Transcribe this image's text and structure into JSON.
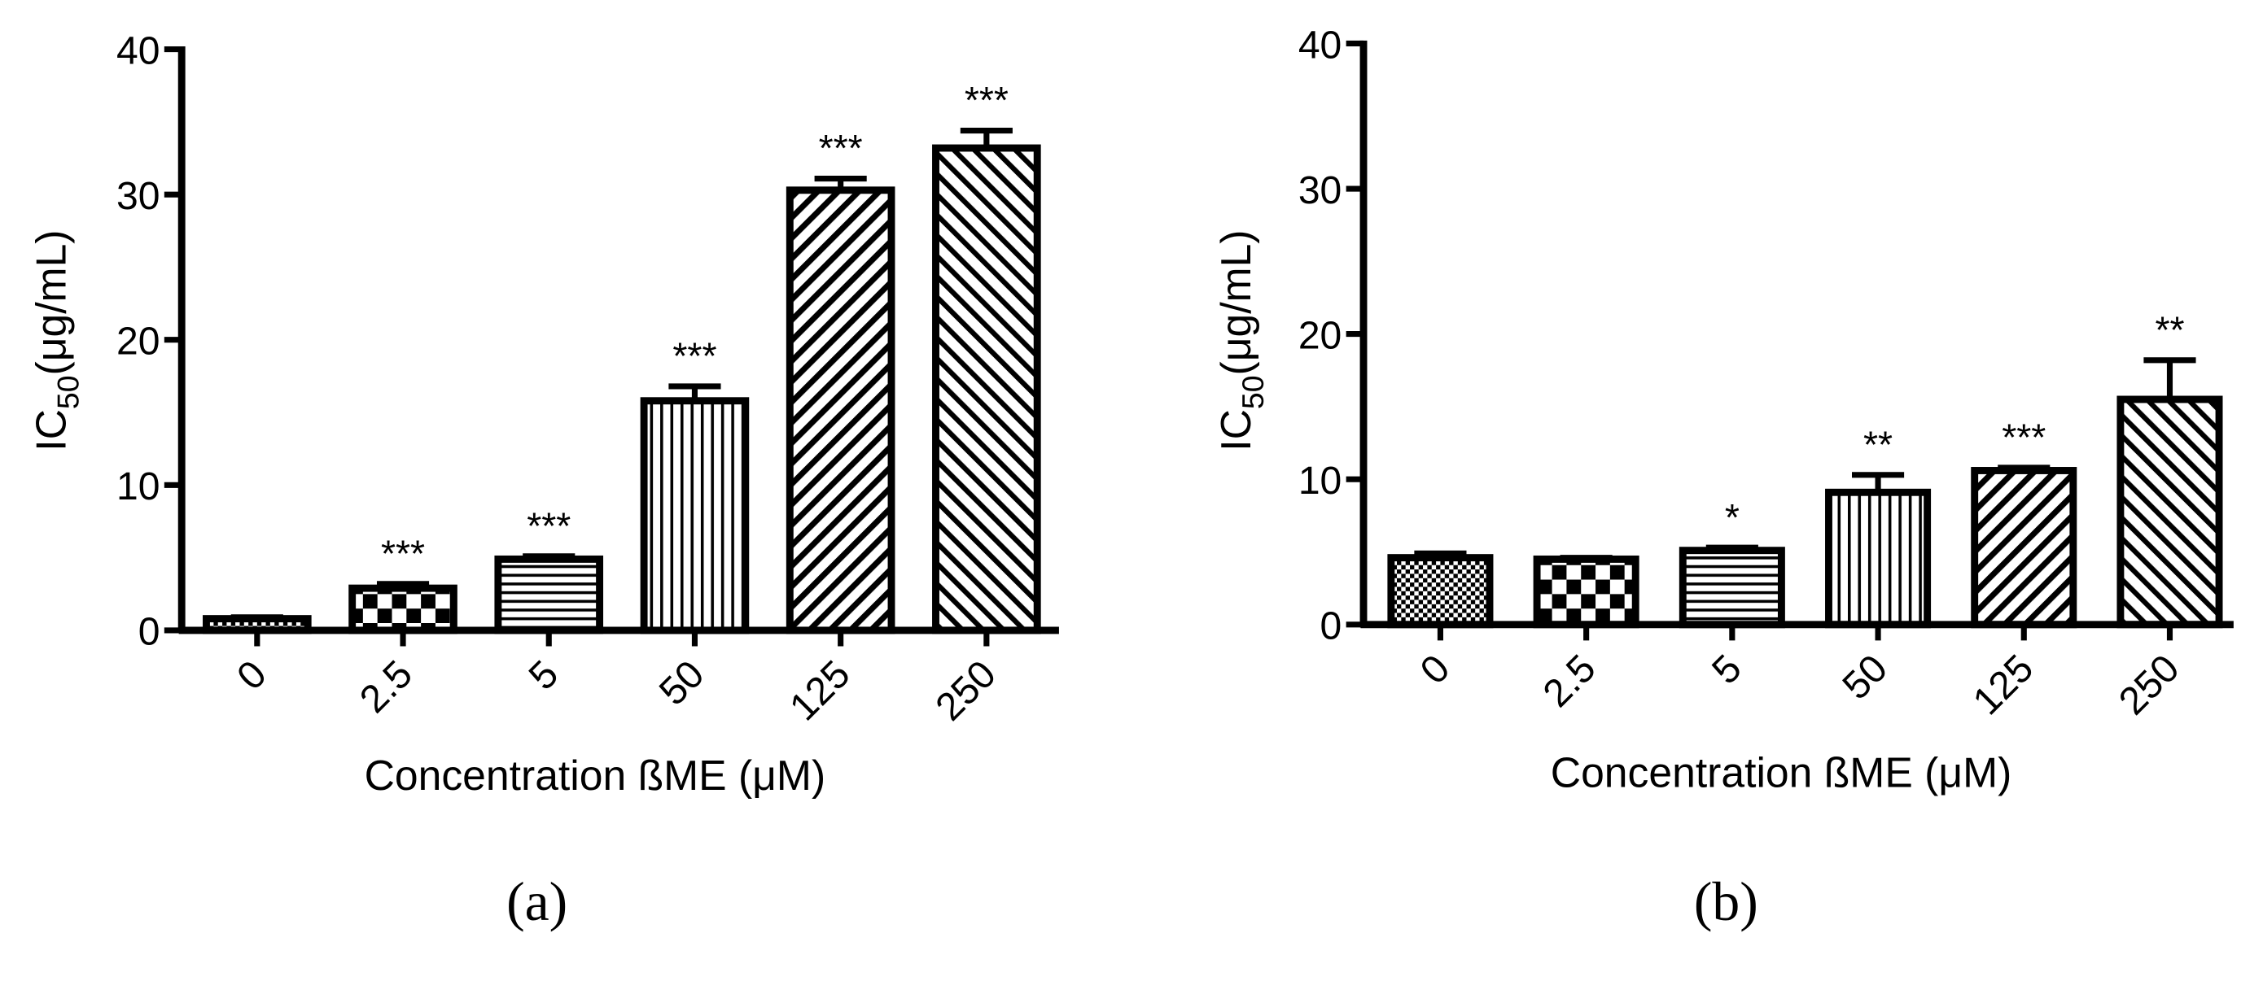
{
  "chart_data": [
    {
      "type": "bar",
      "panel_label": "(a)",
      "ylabel": {
        "main": "IC",
        "subscript": "50",
        "unit": "(μg/mL)"
      },
      "xlabel": "Concentration ßME (μM)",
      "categories": [
        "0",
        "2.5",
        "5",
        "50",
        "125",
        "250"
      ],
      "values": [
        0.8,
        2.9,
        4.9,
        15.8,
        30.3,
        33.2
      ],
      "errors": [
        0.1,
        0.3,
        0.2,
        1.0,
        0.8,
        1.2
      ],
      "annotations": [
        null,
        "***",
        "***",
        "***",
        "***",
        "***"
      ],
      "bar_patterns": [
        "dots",
        "checker",
        "hlines",
        "vlines",
        "diag-right",
        "diag-left"
      ],
      "color": "#000000",
      "ylim": [
        0,
        40
      ],
      "yticks": [
        0,
        10,
        20,
        30,
        40
      ]
    },
    {
      "type": "bar",
      "panel_label": "(b)",
      "ylabel": {
        "main": "IC",
        "subscript": "50",
        "unit": "(μg/mL)"
      },
      "xlabel": "Concentration ßME (μM)",
      "categories": [
        "0",
        "2.5",
        "5",
        "50",
        "125",
        "250"
      ],
      "values": [
        4.6,
        4.5,
        5.1,
        9.1,
        10.6,
        15.5
      ],
      "errors": [
        0.3,
        0.1,
        0.2,
        1.2,
        0.2,
        2.7
      ],
      "annotations": [
        null,
        null,
        "*",
        "**",
        "***",
        "**"
      ],
      "bar_patterns": [
        "dots",
        "checker",
        "hlines",
        "vlines",
        "diag-right",
        "diag-left"
      ],
      "color": "#000000",
      "ylim": [
        0,
        40
      ],
      "yticks": [
        0,
        10,
        20,
        30,
        40
      ]
    }
  ]
}
